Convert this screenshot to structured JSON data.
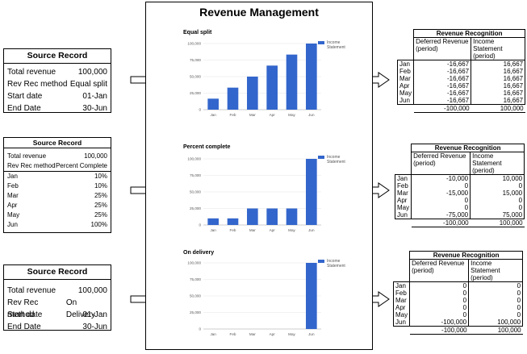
{
  "panel": {
    "title": "Revenue Management"
  },
  "source_records": [
    {
      "title": "Source Record",
      "rows": [
        {
          "label": "Total revenue",
          "value": "100,000"
        },
        {
          "label": "Rev Rec method",
          "value": "Equal split"
        },
        {
          "label": "Start date",
          "value": "01-Jan"
        },
        {
          "label": "End Date",
          "value": "30-Jun"
        }
      ]
    },
    {
      "title": "Source Record",
      "rows": [
        {
          "label": "Total revenue",
          "value": "100,000"
        },
        {
          "label": "Rev Rec method",
          "value": "Percent Complete"
        },
        {
          "label": "Jan",
          "value": "10%"
        },
        {
          "label": "Feb",
          "value": "10%"
        },
        {
          "label": "Mar",
          "value": "25%"
        },
        {
          "label": "Apr",
          "value": "25%"
        },
        {
          "label": "May",
          "value": "25%"
        },
        {
          "label": "Jun",
          "value": "100%"
        }
      ]
    },
    {
      "title": "Source Record",
      "rows": [
        {
          "label": "Total revenue",
          "value": "100,000"
        },
        {
          "label": "Rev Rec method",
          "value": "On Delivery"
        },
        {
          "label": "Start date",
          "value": "01-Jan"
        },
        {
          "label": "End Date",
          "value": "30-Jun"
        }
      ]
    }
  ],
  "chart_data": [
    {
      "type": "bar",
      "title": "Equal split",
      "categories": [
        "Jan",
        "Feb",
        "Mar",
        "Apr",
        "May",
        "Jun"
      ],
      "series": [
        {
          "name": "Income Statement",
          "values": [
            16667,
            33333,
            50000,
            66667,
            83333,
            100000
          ]
        }
      ],
      "yticks": [
        "0",
        "25,000",
        "50,000",
        "75,000",
        "100,000"
      ],
      "ylim": [
        0,
        100000
      ],
      "grid": true,
      "legend": "right",
      "color": "#3366cc"
    },
    {
      "type": "bar",
      "title": "Percent complete",
      "categories": [
        "Jan",
        "Feb",
        "Mar",
        "Apr",
        "May",
        "Jun"
      ],
      "series": [
        {
          "name": "Income Statement",
          "values": [
            10000,
            10000,
            25000,
            25000,
            25000,
            100000
          ]
        }
      ],
      "yticks": [
        "0",
        "25,000",
        "50,000",
        "75,000",
        "100,000"
      ],
      "ylim": [
        0,
        100000
      ],
      "grid": true,
      "legend": "right",
      "color": "#3366cc"
    },
    {
      "type": "bar",
      "title": "On delivery",
      "categories": [
        "Jan",
        "Feb",
        "Mar",
        "Apr",
        "May",
        "Jun"
      ],
      "series": [
        {
          "name": "Income Statement",
          "values": [
            0,
            0,
            0,
            0,
            0,
            100000
          ]
        }
      ],
      "yticks": [
        "0",
        "25,000",
        "50,000",
        "75,000",
        "100,000"
      ],
      "ylim": [
        0,
        100000
      ],
      "grid": true,
      "legend": "right",
      "color": "#3366cc"
    }
  ],
  "recognition_tables": [
    {
      "title": "Revenue Recognition",
      "col1": "Deferred Revenue (period)",
      "col2": "Income Statement (period)",
      "rows": [
        {
          "month": "Jan",
          "deferred": "-16,667",
          "income": "16,667"
        },
        {
          "month": "Feb",
          "deferred": "-16,667",
          "income": "16,667"
        },
        {
          "month": "Mar",
          "deferred": "-16,667",
          "income": "16,667"
        },
        {
          "month": "Apr",
          "deferred": "-16,667",
          "income": "16,667"
        },
        {
          "month": "May",
          "deferred": "-16,667",
          "income": "16,667"
        },
        {
          "month": "Jun",
          "deferred": "-16,667",
          "income": "16,667"
        }
      ],
      "total_deferred": "-100,000",
      "total_income": "100,000"
    },
    {
      "title": "Revenue Recognition",
      "col1": "Deferred Revenue (period)",
      "col2": "Income Statement (period)",
      "rows": [
        {
          "month": "Jan",
          "deferred": "-10,000",
          "income": "10,000"
        },
        {
          "month": "Feb",
          "deferred": "0",
          "income": "0"
        },
        {
          "month": "Mar",
          "deferred": "-15,000",
          "income": "15,000"
        },
        {
          "month": "Apr",
          "deferred": "0",
          "income": "0"
        },
        {
          "month": "May",
          "deferred": "0",
          "income": "0"
        },
        {
          "month": "Jun",
          "deferred": "-75,000",
          "income": "75,000"
        }
      ],
      "total_deferred": "-100,000",
      "total_income": "100,000"
    },
    {
      "title": "Revenue Recognition",
      "col1": "Deferred Revenue (period)",
      "col2": "Income Statement (period)",
      "rows": [
        {
          "month": "Jan",
          "deferred": "0",
          "income": "0"
        },
        {
          "month": "Feb",
          "deferred": "0",
          "income": "0"
        },
        {
          "month": "Mar",
          "deferred": "0",
          "income": "0"
        },
        {
          "month": "Apr",
          "deferred": "0",
          "income": "0"
        },
        {
          "month": "May",
          "deferred": "0",
          "income": "0"
        },
        {
          "month": "Jun",
          "deferred": "-100,000",
          "income": "100,000"
        }
      ],
      "total_deferred": "-100,000",
      "total_income": "100,000"
    }
  ],
  "arrow_icon": "block-arrow-right-icon"
}
